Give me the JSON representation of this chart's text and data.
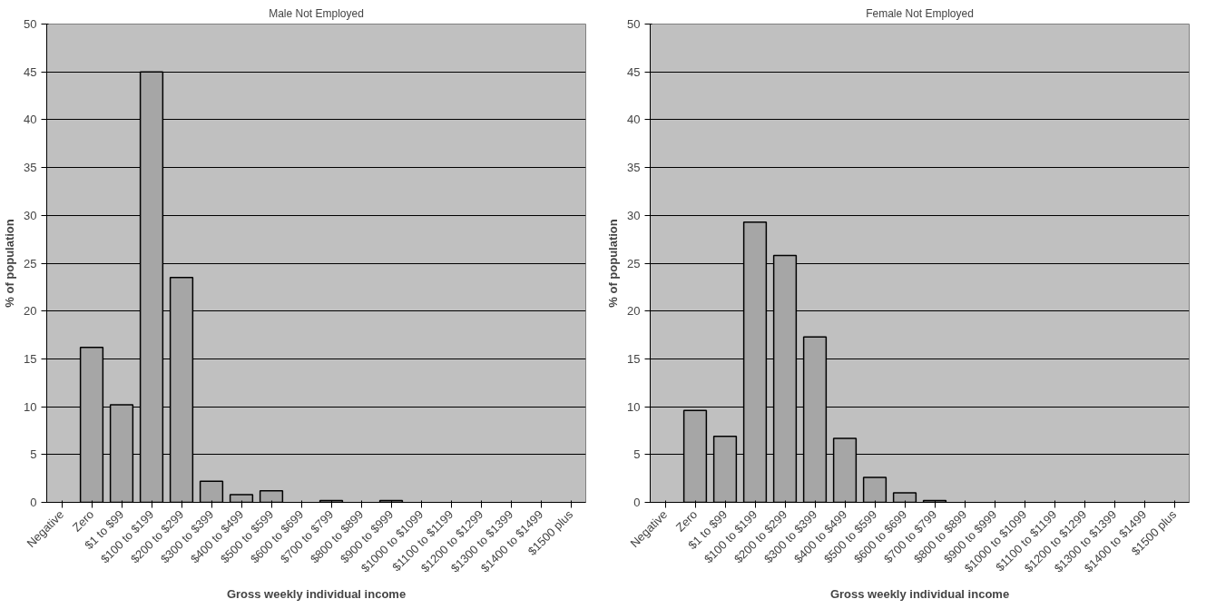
{
  "chart_data": [
    {
      "type": "bar",
      "title": "Male Not Employed",
      "xlabel": "Gross weekly individual income",
      "ylabel": "% of population",
      "categories": [
        "Negative",
        "Zero",
        "$1 to $99",
        "$100 to $199",
        "$200 to $299",
        "$300 to $399",
        "$400 to $499",
        "$500 to $599",
        "$600 to $699",
        "$700 to $799",
        "$800 to $899",
        "$900 to $999",
        "$1000 to $1099",
        "$1100 to $1199",
        "$1200 to $1299",
        "$1300 to $1399",
        "$1400 to $1499",
        "$1500 plus"
      ],
      "values": [
        0,
        16.2,
        10.2,
        45,
        23.5,
        2.2,
        0.8,
        1.2,
        0,
        0.2,
        0,
        0.2,
        0,
        0,
        0,
        0,
        0,
        0
      ],
      "color": "#a6a6a6",
      "ylim": [
        0,
        50
      ],
      "yticks": [
        0,
        5,
        10,
        15,
        20,
        25,
        30,
        35,
        40,
        45,
        50
      ],
      "grid": "y"
    },
    {
      "type": "bar",
      "title": "Female Not Employed",
      "xlabel": "Gross weekly individual income",
      "ylabel": "% of population",
      "categories": [
        "Negative",
        "Zero",
        "$1 to $99",
        "$100 to $199",
        "$200 to $299",
        "$300 to $399",
        "$400 to $499",
        "$500 to $599",
        "$600 to $699",
        "$700 to $799",
        "$800 to $899",
        "$900 to $999",
        "$1000 to $1099",
        "$1100 to $1199",
        "$1200 to $1299",
        "$1300 to $1399",
        "$1400 to $1499",
        "$1500 plus"
      ],
      "values": [
        0,
        9.6,
        6.9,
        29.3,
        25.8,
        17.3,
        6.7,
        2.6,
        1.0,
        0.2,
        0,
        0,
        0,
        0,
        0,
        0,
        0,
        0
      ],
      "color": "#a6a6a6",
      "ylim": [
        0,
        50
      ],
      "yticks": [
        0,
        5,
        10,
        15,
        20,
        25,
        30,
        35,
        40,
        45,
        50
      ],
      "grid": "y"
    }
  ]
}
